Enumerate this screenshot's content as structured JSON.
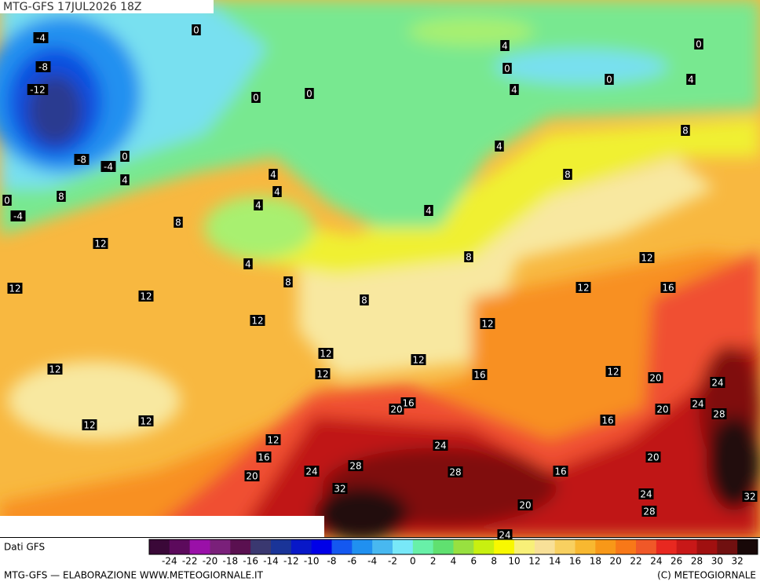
{
  "header": {
    "title": "MTG-GFS 17JUL2026 18Z"
  },
  "map": {
    "contour_labels": [
      -4,
      0,
      -8,
      -12,
      0,
      0,
      4,
      0,
      0,
      0,
      4,
      4,
      8,
      4,
      0,
      -8,
      -4,
      4,
      4,
      4,
      4,
      8,
      0,
      -4,
      4,
      8,
      8,
      12,
      8,
      12,
      4,
      8,
      12,
      12,
      16,
      12,
      8,
      12,
      12,
      12,
      12,
      12,
      12,
      12,
      16,
      20,
      24,
      16,
      20,
      20,
      24,
      28,
      12,
      12,
      16,
      12,
      24,
      16,
      20,
      28,
      28,
      24,
      20,
      16,
      32,
      24,
      32,
      20,
      28,
      24
    ]
  },
  "legend": {
    "source": "Dati GFS",
    "colors": [
      "#3a0838",
      "#5c0a5c",
      "#9a10a8",
      "#7a207a",
      "#5a1050",
      "#3a3870",
      "#1a3498",
      "#0818c8",
      "#0000e8",
      "#1458f0",
      "#2090f0",
      "#48b8f0",
      "#78e8f8",
      "#68f0a8",
      "#60e070",
      "#98e040",
      "#c8f010",
      "#f8f800",
      "#f8f078",
      "#f8e098",
      "#f8d060",
      "#f8b830",
      "#f89818",
      "#f87818",
      "#f05828",
      "#e82820",
      "#c81818",
      "#a01010",
      "#701010",
      "#180808"
    ],
    "ticks": [
      -24,
      -22,
      -20,
      -18,
      -16,
      -14,
      -12,
      -10,
      -8,
      -6,
      -4,
      -2,
      0,
      2,
      4,
      6,
      8,
      10,
      12,
      14,
      16,
      18,
      20,
      22,
      24,
      26,
      28,
      30,
      32
    ]
  },
  "footer": {
    "left": "MTG-GFS — ELABORAZIONE WWW.METEOGIORNALE.IT",
    "right": "(C) METEOGIORNALE"
  }
}
